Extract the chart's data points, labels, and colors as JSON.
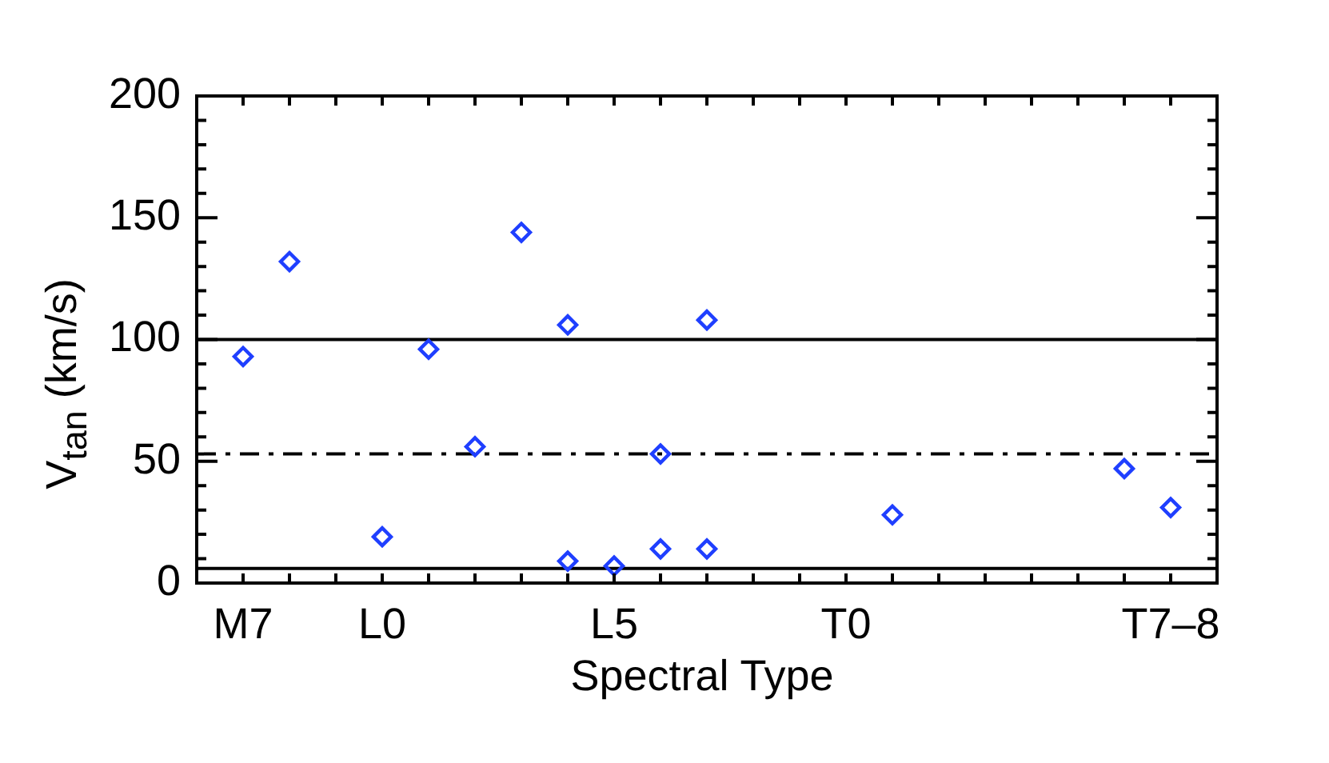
{
  "chart_data": {
    "type": "scatter",
    "xlabel": "Spectral Type",
    "ylabel": "V$_{tan}$ (km/s)",
    "categories": [
      null,
      "M7",
      null,
      null,
      "L0",
      null,
      null,
      null,
      null,
      "L5",
      null,
      null,
      null,
      null,
      "T0",
      null,
      null,
      null,
      null,
      null,
      null,
      "T7–8",
      null
    ],
    "series": [
      {
        "color": "#1f3fff",
        "values": [
          null,
          93,
          132,
          null,
          19,
          96,
          56,
          144,
          106,
          7,
          53,
          108,
          null,
          null,
          null,
          28,
          null,
          null,
          null,
          null,
          47,
          31,
          null
        ]
      },
      {
        "color": "#1f3fff",
        "values": [
          null,
          null,
          null,
          null,
          null,
          null,
          null,
          null,
          9,
          null,
          14,
          14,
          null,
          null,
          null,
          null,
          null,
          null,
          null,
          null,
          null,
          null,
          null
        ]
      }
    ],
    "ylim": [
      0,
      200
    ],
    "yticks": [
      0,
      {
        "value": 10,
        "label": null
      },
      {
        "value": 20,
        "label": null
      },
      {
        "value": 30,
        "label": null
      },
      {
        "value": 40,
        "label": null
      },
      50,
      {
        "value": 60,
        "label": null
      },
      {
        "value": 70,
        "label": null
      },
      {
        "value": 80,
        "label": null
      },
      {
        "value": 90,
        "label": null
      },
      100,
      {
        "value": 110,
        "label": null
      },
      {
        "value": 120,
        "label": null
      },
      {
        "value": 130,
        "label": null
      },
      {
        "value": 140,
        "label": null
      },
      150,
      {
        "value": 160,
        "label": null
      },
      {
        "value": 170,
        "label": null
      },
      {
        "value": 180,
        "label": null
      },
      {
        "value": 190,
        "label": null
      },
      200
    ],
    "ref_lines": [
      {
        "axis": "y",
        "value": 100,
        "color": "#000000",
        "line_style": "solid"
      },
      {
        "axis": "y",
        "value": 53,
        "color": "#000000",
        "line_style": "dashdot"
      },
      {
        "axis": "y",
        "value": 6,
        "color": "#000000",
        "line_style": "solid"
      }
    ],
    "marker": "diamond"
  }
}
